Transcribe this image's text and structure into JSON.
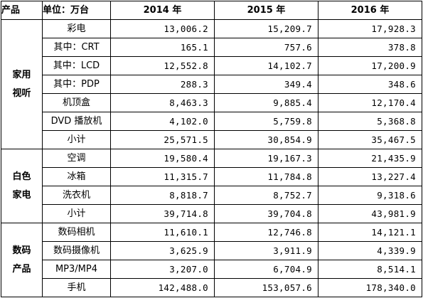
{
  "header": {
    "product": "产品",
    "unit": "单位：万台",
    "years": [
      "2014 年",
      "2015 年",
      "2016 年"
    ]
  },
  "groups": [
    {
      "category": "家用视听",
      "rows": [
        {
          "item": "彩电",
          "values": [
            "13,006.2",
            "15,209.7",
            "17,928.3"
          ]
        },
        {
          "item": "其中：CRT",
          "values": [
            "165.1",
            "757.6",
            "378.8"
          ]
        },
        {
          "item": "其中：LCD",
          "values": [
            "12,552.8",
            "14,102.7",
            "17,200.9"
          ]
        },
        {
          "item": "其中：PDP",
          "values": [
            "288.3",
            "349.4",
            "348.6"
          ]
        },
        {
          "item": "机顶盒",
          "values": [
            "8,463.3",
            "9,885.4",
            "12,170.4"
          ]
        },
        {
          "item": "DVD 播放机",
          "values": [
            "4,102.0",
            "5,759.8",
            "5,368.8"
          ]
        },
        {
          "item": "小计",
          "values": [
            "25,571.5",
            "30,854.9",
            "35,467.5"
          ]
        }
      ]
    },
    {
      "category": "白色家电",
      "rows": [
        {
          "item": "空调",
          "values": [
            "19,580.4",
            "19,167.3",
            "21,435.9"
          ]
        },
        {
          "item": "冰箱",
          "values": [
            "11,315.7",
            "11,784.8",
            "13,227.4"
          ]
        },
        {
          "item": "洗衣机",
          "values": [
            "8,818.7",
            "8,752.7",
            "9,318.6"
          ]
        },
        {
          "item": "小计",
          "values": [
            "39,714.8",
            "39,704.8",
            "43,981.9"
          ]
        }
      ]
    },
    {
      "category": "数码产品",
      "rows": [
        {
          "item": "数码相机",
          "values": [
            "11,610.1",
            "12,746.8",
            "14,121.1"
          ]
        },
        {
          "item": "数码摄像机",
          "values": [
            "3,625.9",
            "3,911.9",
            "4,339.9"
          ]
        },
        {
          "item": "MP3/MP4",
          "values": [
            "3,207.0",
            "6,704.9",
            "8,514.1"
          ]
        },
        {
          "item": "手机",
          "values": [
            "142,488.0",
            "153,057.6",
            "178,340.0"
          ]
        }
      ]
    }
  ]
}
